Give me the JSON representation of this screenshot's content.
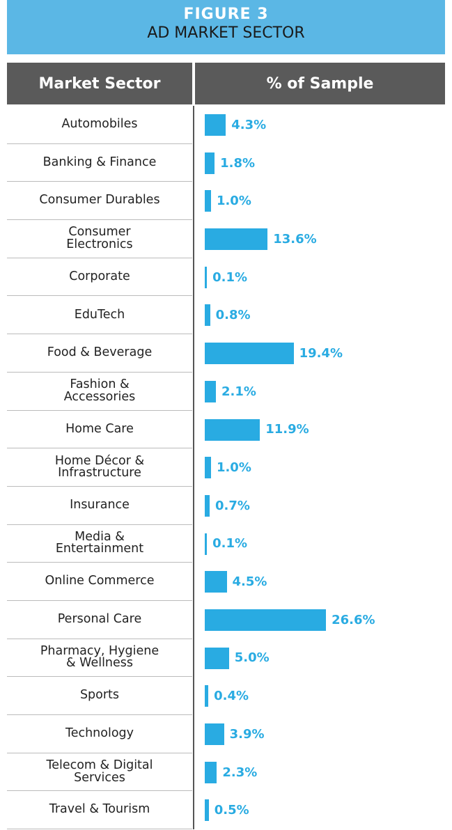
{
  "chart_data": {
    "type": "bar",
    "title": "FIGURE 3",
    "subtitle": "AD MARKET SECTOR",
    "category_header": "Market Sector",
    "value_header": "% of Sample",
    "color": "#29abe2",
    "categories": [
      "Automobiles",
      "Banking & Finance",
      "Consumer Durables",
      "Consumer Electronics",
      "Corporate",
      "EduTech",
      "Food & Beverage",
      "Fashion & Accessories",
      "Home Care",
      "Home Décor & Infrastructure",
      "Insurance",
      "Media & Entertainment",
      "Online Commerce",
      "Personal Care",
      "Pharmacy, Hygiene & Wellness",
      "Sports",
      "Technology",
      "Telecom & Digital Services",
      "Travel & Tourism"
    ],
    "values": [
      4.3,
      1.8,
      1.0,
      13.6,
      0.1,
      0.8,
      19.4,
      2.1,
      11.9,
      1.0,
      0.7,
      0.1,
      4.5,
      26.6,
      5.0,
      0.4,
      3.9,
      2.3,
      0.5
    ],
    "value_labels": [
      "4.3%",
      "1.8%",
      "1.0%",
      "13.6%",
      "0.1%",
      "0.8%",
      "19.4%",
      "2.1%",
      "11.9%",
      "1.0%",
      "0.7%",
      "0.1%",
      "4.5%",
      "26.6%",
      "5.0%",
      "0.4%",
      "3.9%",
      "2.3%",
      "0.5%"
    ]
  }
}
